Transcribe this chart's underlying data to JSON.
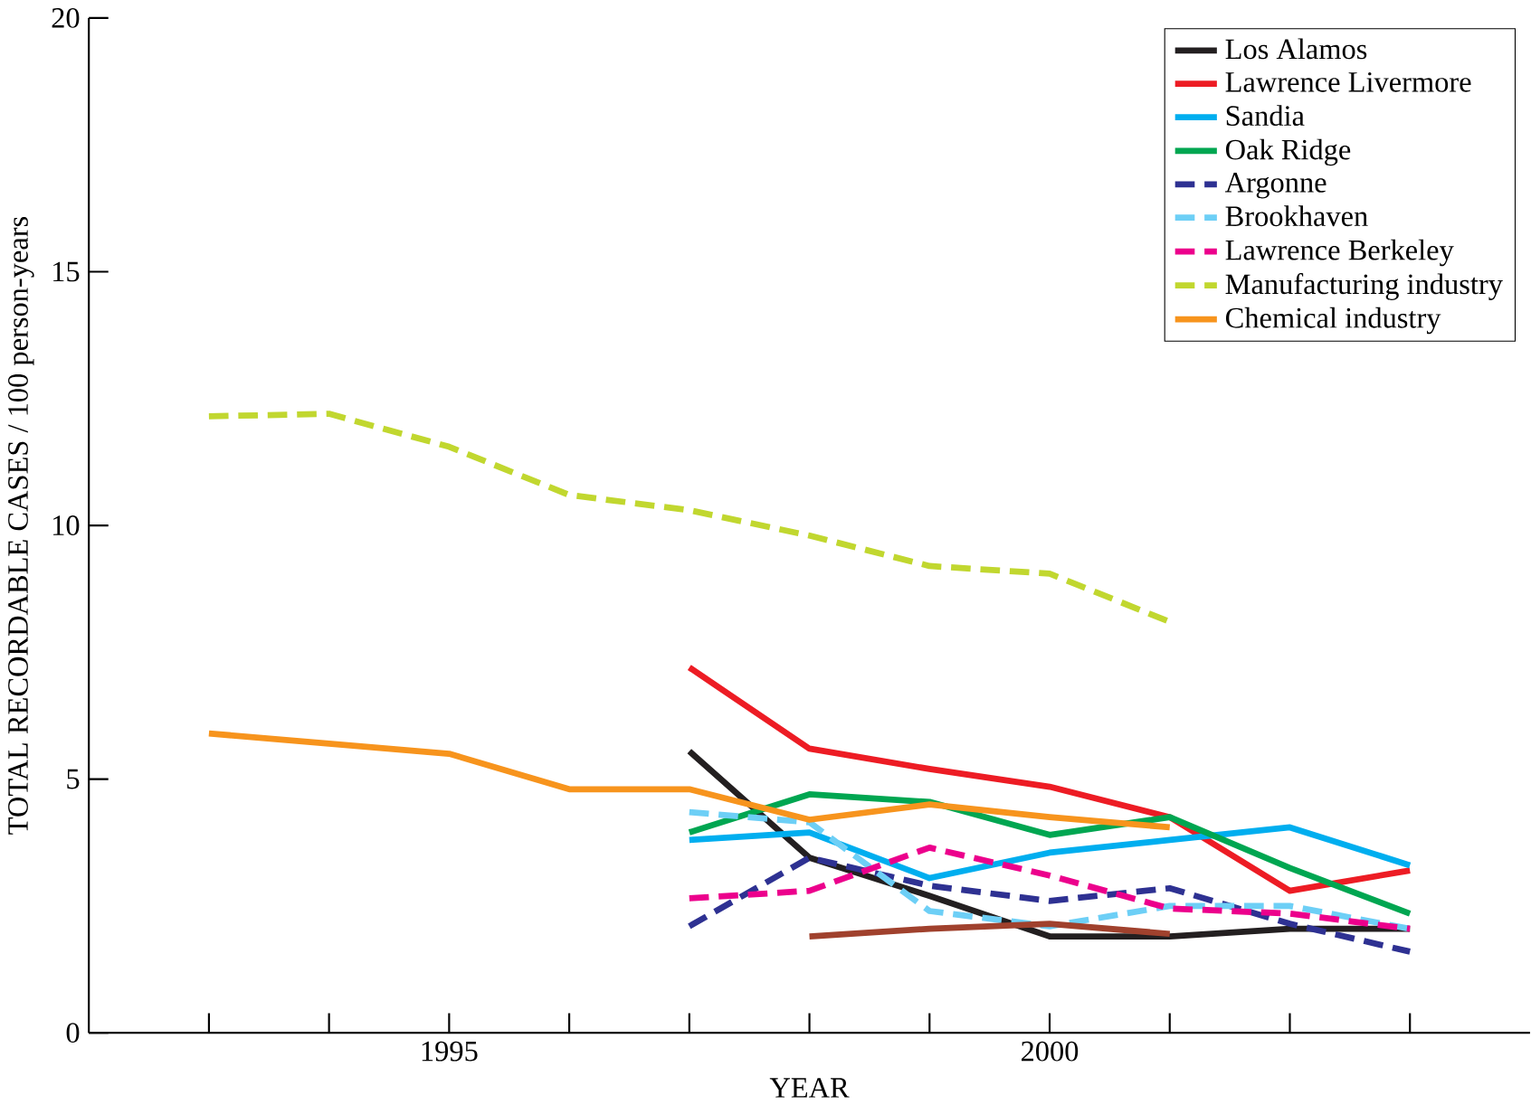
{
  "chart_data": {
    "type": "line",
    "xlabel": "YEAR",
    "ylabel": "TOTAL RECORDABLE CASES / 100 person-years",
    "x": [
      1993,
      1994,
      1995,
      1996,
      1997,
      1998,
      1999,
      2000,
      2001,
      2002,
      2003
    ],
    "xlim": [
      1992,
      2004
    ],
    "ylim": [
      0,
      20
    ],
    "yticks": [
      0,
      5,
      10,
      15,
      20
    ],
    "xticks": [
      {
        "value": 1993,
        "label": null
      },
      {
        "value": 1994,
        "label": null
      },
      1995,
      {
        "value": 1996,
        "label": null
      },
      {
        "value": 1997,
        "label": null
      },
      {
        "value": 1998,
        "label": null
      },
      {
        "value": 1999,
        "label": null
      },
      2000,
      {
        "value": 2001,
        "label": null
      },
      {
        "value": 2002,
        "label": null
      },
      {
        "value": 2003,
        "label": null
      }
    ],
    "legend": "top right",
    "grid": false,
    "marker": "none",
    "series": [
      {
        "name": "Los Alamos",
        "color": "#231f20",
        "line_style": "solid",
        "values": [
          null,
          null,
          null,
          null,
          5.55,
          3.45,
          2.7,
          1.9,
          1.9,
          2.05,
          2.05
        ]
      },
      {
        "name": "Lawrence Livermore",
        "color": "#ed1c24",
        "line_style": "solid",
        "values": [
          null,
          null,
          null,
          null,
          7.2,
          5.6,
          5.2,
          4.85,
          4.25,
          2.8,
          3.2
        ]
      },
      {
        "name": "Sandia",
        "color": "#00aeef",
        "line_style": "solid",
        "values": [
          null,
          null,
          null,
          null,
          3.8,
          3.95,
          3.05,
          3.55,
          3.8,
          4.05,
          3.3
        ]
      },
      {
        "name": "Oak Ridge",
        "color": "#00a651",
        "line_style": "solid",
        "values": [
          null,
          null,
          null,
          null,
          3.95,
          4.7,
          4.55,
          3.9,
          4.25,
          3.25,
          2.35
        ]
      },
      {
        "name": "Argonne",
        "color": "#2e3192",
        "line_style": "dashed",
        "values": [
          null,
          null,
          null,
          null,
          2.1,
          3.45,
          2.9,
          2.6,
          2.85,
          2.15,
          1.6
        ]
      },
      {
        "name": "Brookhaven",
        "color": "#6dcff6",
        "line_style": "dashed",
        "values": [
          null,
          null,
          null,
          null,
          4.35,
          4.15,
          2.4,
          2.1,
          2.5,
          2.5,
          2.05
        ]
      },
      {
        "name": "Lawrence Berkeley",
        "color": "#ec008c",
        "line_style": "dashed",
        "values": [
          null,
          null,
          null,
          null,
          2.65,
          2.8,
          3.65,
          3.1,
          2.45,
          2.35,
          2.05
        ]
      },
      {
        "name": "Manufacturing industry",
        "color": "#c1d72f",
        "line_style": "dashed",
        "values": [
          12.15,
          12.2,
          11.55,
          10.6,
          10.3,
          9.8,
          9.2,
          9.05,
          8.1,
          null,
          null
        ]
      },
      {
        "name": "Chemical industry",
        "color": "#f7941d",
        "line_style": "solid",
        "values": [
          5.9,
          5.7,
          5.5,
          4.8,
          4.8,
          4.2,
          4.5,
          4.25,
          4.05,
          null,
          null
        ]
      },
      {
        "color": "#a0412d",
        "line_style": "solid",
        "values": [
          null,
          null,
          null,
          null,
          null,
          1.9,
          2.05,
          2.15,
          1.95,
          null,
          null
        ]
      }
    ]
  }
}
